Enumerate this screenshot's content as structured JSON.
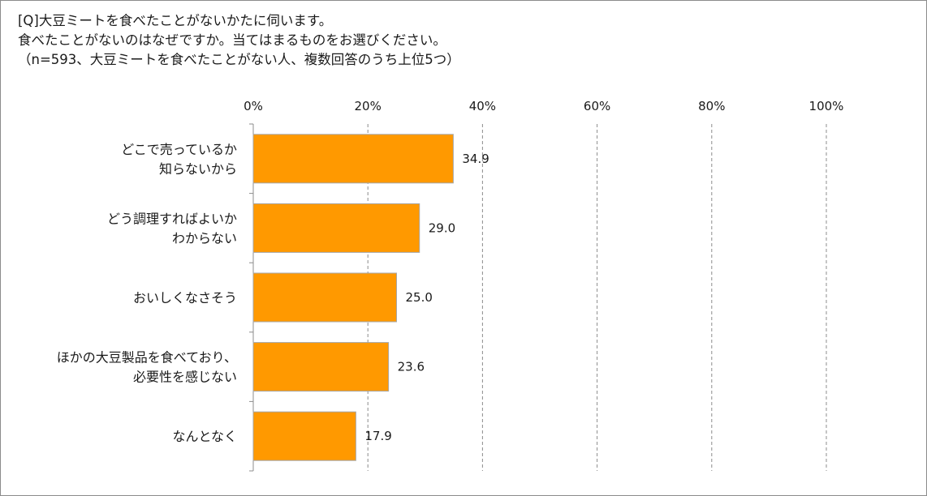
{
  "header": {
    "line1": "[Q]大豆ミートを食べたことがないかたに伺います。",
    "line2": "食べたことがないのはなぜですか。当てはまるものをお選びください。",
    "line3": "（n=593、大豆ミートを食べたことがない人、複数回答のうち上位5つ）"
  },
  "chart_data": {
    "type": "bar",
    "orientation": "horizontal",
    "categories": [
      [
        "どこで売っているか",
        "知らないから"
      ],
      [
        "どう調理すればよいか",
        "わからない"
      ],
      [
        "おいしくなさそう"
      ],
      [
        "ほかの大豆製品を食べており、",
        "必要性を感じない"
      ],
      [
        "なんとなく"
      ]
    ],
    "values": [
      34.9,
      29.0,
      25.0,
      23.6,
      17.9
    ],
    "value_labels": [
      "34.9",
      "29.0",
      "25.0",
      "23.6",
      "17.9"
    ],
    "xlim": [
      0,
      100
    ],
    "xticks": [
      "0%",
      "20%",
      "40%",
      "60%",
      "80%",
      "100%"
    ],
    "xtick_values": [
      0,
      20,
      40,
      60,
      80,
      100
    ],
    "grid": "vertical-dashed",
    "bar_color": "#ff9900",
    "bar_edge_color": "#a6a6a6"
  }
}
